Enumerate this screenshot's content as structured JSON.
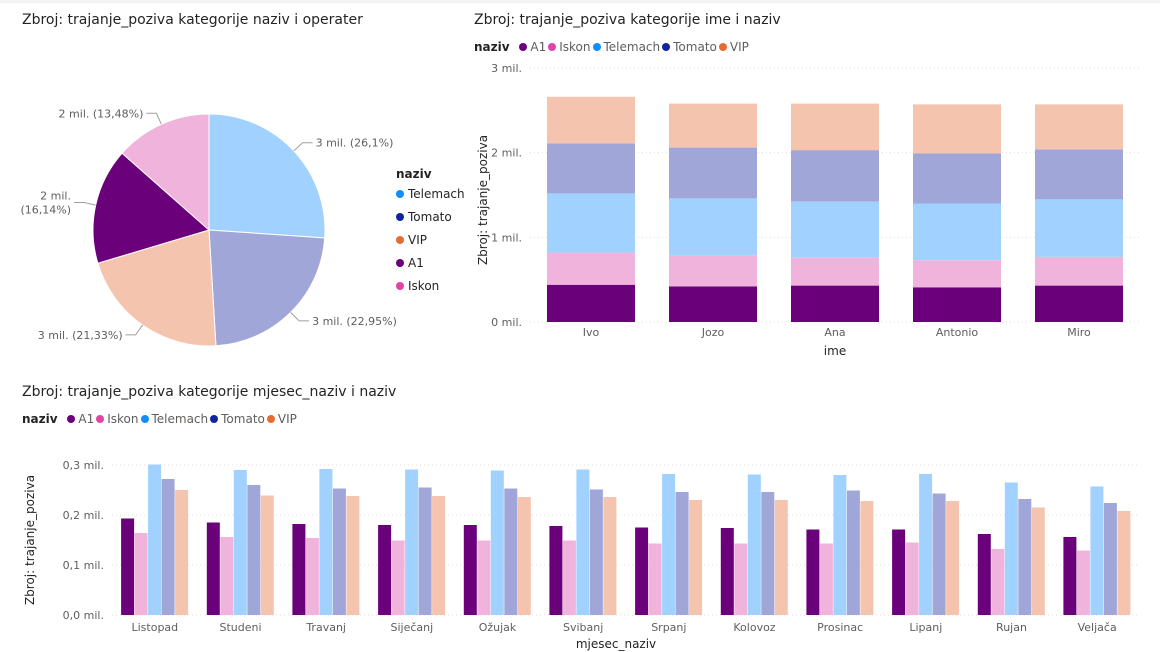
{
  "colors": {
    "A1": "#6b007b",
    "Iskon": "#e044a7",
    "Telemach": "#118dff",
    "Tomato": "#12239e",
    "VIP": "#e66c37"
  },
  "chart_data": [
    {
      "type": "pie",
      "title": "Zbroj: trajanje_poziva kategorije naziv i operater",
      "legend_title": "naziv",
      "legend": [
        "Telemach",
        "Tomato",
        "VIP",
        "A1",
        "Iskon"
      ],
      "slices": [
        {
          "name": "Telemach",
          "label": "3 mil. (26,1%)",
          "percent": 26.1,
          "color": "#a0d1ff"
        },
        {
          "name": "Tomato",
          "label": "3 mil. (22,95%)",
          "percent": 22.95,
          "color": "#a0a7d8"
        },
        {
          "name": "VIP",
          "label": "3 mil. (21,33%)",
          "percent": 21.33,
          "color": "#f5c4af"
        },
        {
          "name": "A1",
          "label": "2 mil. (16,14%)",
          "percent": 16.14,
          "color": "#6b007b"
        },
        {
          "name": "Iskon",
          "label": "2 mil. (13,48%)",
          "percent": 13.48,
          "color": "#f0b3dc"
        }
      ]
    },
    {
      "type": "bar",
      "stacked": true,
      "title": "Zbroj: trajanje_poziva kategorije ime i naziv",
      "legend_title": "naziv",
      "xlabel": "ime",
      "ylabel": "Zbroj: trajanje_poziva",
      "yticks": [
        "0 mil.",
        "1 mil.",
        "2 mil.",
        "3 mil."
      ],
      "ylim": [
        0,
        3
      ],
      "categories": [
        "Ivo",
        "Jozo",
        "Ana",
        "Antonio",
        "Miro"
      ],
      "series": [
        {
          "name": "A1",
          "color": "#6b007b",
          "values": [
            0.44,
            0.42,
            0.43,
            0.41,
            0.43
          ]
        },
        {
          "name": "Iskon",
          "color": "#f0b3dc",
          "values": [
            0.38,
            0.37,
            0.33,
            0.32,
            0.34
          ]
        },
        {
          "name": "Telemach",
          "color": "#a0d1ff",
          "values": [
            0.7,
            0.67,
            0.66,
            0.67,
            0.68
          ]
        },
        {
          "name": "Tomato",
          "color": "#a0a7d8",
          "values": [
            0.59,
            0.6,
            0.61,
            0.59,
            0.59
          ]
        },
        {
          "name": "VIP",
          "color": "#f5c4af",
          "values": [
            0.55,
            0.52,
            0.55,
            0.58,
            0.53
          ]
        }
      ]
    },
    {
      "type": "bar",
      "stacked": false,
      "title": "Zbroj: trajanje_poziva kategorije mjesec_naziv i naziv",
      "legend_title": "naziv",
      "xlabel": "mjesec_naziv",
      "ylabel": "Zbroj: trajanje_poziva",
      "yticks": [
        "0,0 mil.",
        "0,1 mil.",
        "0,2 mil.",
        "0,3 mil."
      ],
      "ylim": [
        0,
        0.3
      ],
      "categories": [
        "Listopad",
        "Studeni",
        "Travanj",
        "Siječanj",
        "Ožujak",
        "Svibanj",
        "Srpanj",
        "Kolovoz",
        "Prosinac",
        "Lipanj",
        "Rujan",
        "Veljača"
      ],
      "series": [
        {
          "name": "A1",
          "color": "#6b007b",
          "values": [
            0.193,
            0.185,
            0.182,
            0.18,
            0.18,
            0.178,
            0.175,
            0.174,
            0.171,
            0.171,
            0.162,
            0.156
          ]
        },
        {
          "name": "Iskon",
          "color": "#f0b3dc",
          "values": [
            0.164,
            0.156,
            0.154,
            0.149,
            0.149,
            0.149,
            0.143,
            0.143,
            0.143,
            0.145,
            0.132,
            0.129
          ]
        },
        {
          "name": "Telemach",
          "color": "#a0d1ff",
          "values": [
            0.301,
            0.29,
            0.292,
            0.291,
            0.289,
            0.291,
            0.282,
            0.281,
            0.28,
            0.282,
            0.265,
            0.257
          ]
        },
        {
          "name": "Tomato",
          "color": "#a0a7d8",
          "values": [
            0.272,
            0.26,
            0.253,
            0.255,
            0.253,
            0.251,
            0.246,
            0.246,
            0.249,
            0.243,
            0.232,
            0.224
          ]
        },
        {
          "name": "VIP",
          "color": "#f5c4af",
          "values": [
            0.25,
            0.239,
            0.238,
            0.238,
            0.236,
            0.236,
            0.23,
            0.23,
            0.228,
            0.228,
            0.215,
            0.208
          ]
        }
      ]
    }
  ]
}
